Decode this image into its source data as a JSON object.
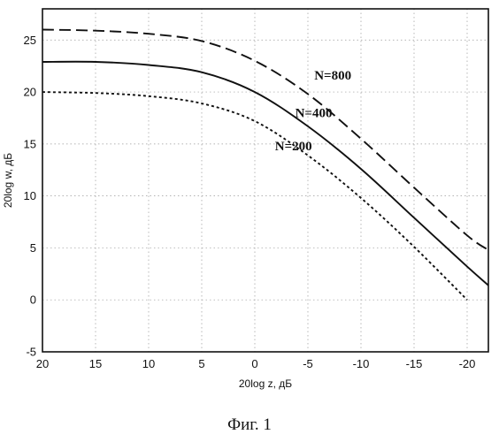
{
  "chart_data": {
    "type": "line",
    "xlabel": "20log z, дБ",
    "ylabel": "20log w, дБ",
    "xlim": [
      20,
      -22
    ],
    "ylim": [
      -5,
      28
    ],
    "x_reversed": true,
    "x_ticks": [
      20,
      15,
      10,
      5,
      0,
      -5,
      -10,
      -15,
      -20
    ],
    "x_tick_labels": [
      "20",
      "15",
      "10",
      "5",
      "0",
      "-5",
      "-10",
      "-15",
      "-20"
    ],
    "y_ticks": [
      -5,
      0,
      5,
      10,
      15,
      20,
      25
    ],
    "y_tick_labels": [
      "-5",
      "0",
      "5",
      "10",
      "15",
      "20",
      "25"
    ],
    "grid": true,
    "series": [
      {
        "name": "N=800",
        "dash": "long-dash",
        "x": [
          20,
          15,
          10,
          5,
          0,
          -5,
          -10,
          -15,
          -20,
          -22
        ],
        "y": [
          26,
          25.9,
          25.6,
          24.9,
          23,
          19.8,
          15.5,
          10.8,
          6.2,
          4.8
        ]
      },
      {
        "name": "N=400",
        "dash": "solid",
        "x": [
          20,
          15,
          10,
          5,
          0,
          -5,
          -10,
          -15,
          -20,
          -22
        ],
        "y": [
          22.9,
          22.9,
          22.6,
          21.9,
          20,
          16.7,
          12.6,
          7.9,
          3.2,
          1.4
        ]
      },
      {
        "name": "N=200",
        "dash": "dotted",
        "x": [
          20,
          15,
          10,
          5,
          0,
          -5,
          -10,
          -15,
          -20
        ],
        "y": [
          20,
          19.9,
          19.6,
          18.9,
          17.2,
          13.9,
          9.8,
          5.1,
          0
        ]
      }
    ]
  },
  "caption": "Фиг. 1"
}
